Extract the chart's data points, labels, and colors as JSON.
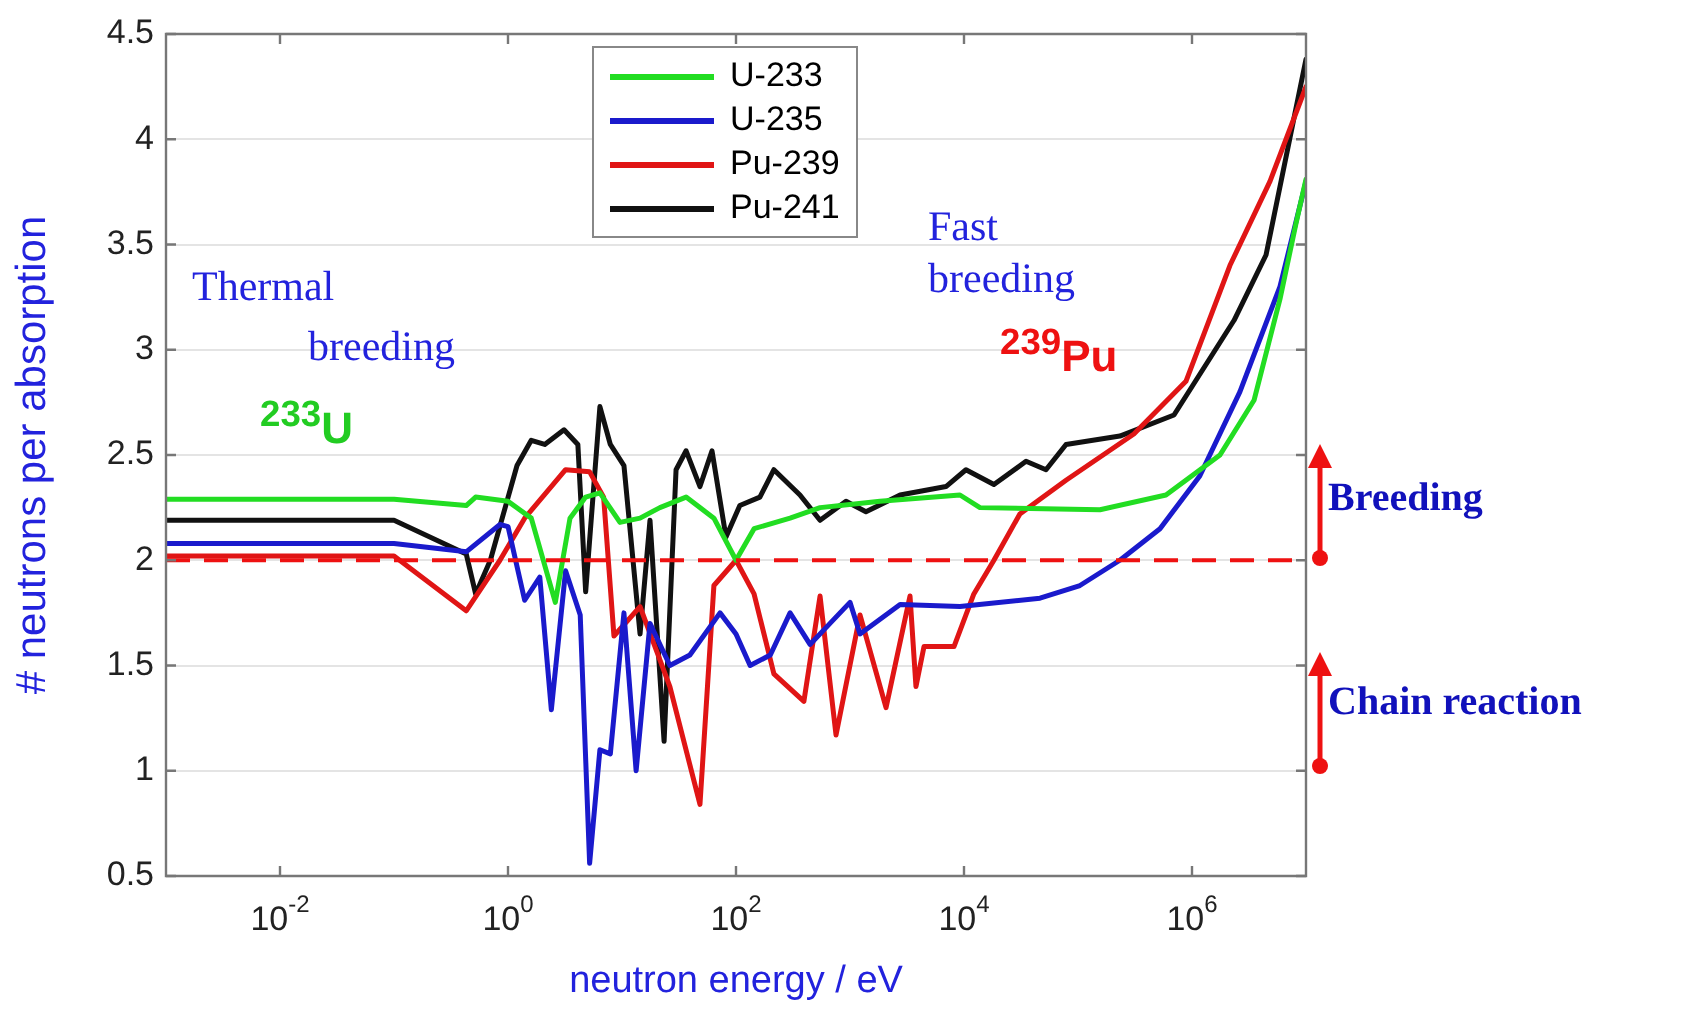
{
  "chart_data": {
    "type": "line",
    "xlabel": "neutron energy / eV",
    "ylabel": "# neutrons per absorption",
    "log": "x",
    "xlim": [
      0.001,
      10000000
    ],
    "ylim": [
      0.5,
      4.5
    ],
    "xticks": [
      {
        "value": 0.01,
        "label": "10$^{-2}$"
      },
      {
        "value": 1,
        "label": "10$^{0}$"
      },
      {
        "value": 100,
        "label": "10$^{2}$"
      },
      {
        "value": 10000,
        "label": "10$^{4}$"
      },
      {
        "value": 1000000,
        "label": "10$^{6}$"
      }
    ],
    "yticks": [
      0.5,
      1,
      1.5,
      2,
      2.5,
      3,
      3.5,
      4,
      4.5
    ],
    "grid": "y",
    "legend": "top",
    "marker": "none",
    "line_style": "solid",
    "series": [
      {
        "name": "U-233",
        "color": "#22dd22",
        "x": [
          0.001,
          0.1,
          0.43,
          0.52,
          1,
          1.6,
          2.6,
          3.5,
          4.8,
          6.4,
          9.6,
          14.4,
          21.5,
          36.5,
          64,
          100,
          144,
          298,
          546,
          1832,
          9220,
          13800,
          156000,
          591000,
          1760000,
          3500000,
          5910000,
          8170000,
          10000000
        ],
        "values": [
          2.29,
          2.29,
          2.26,
          2.3,
          2.28,
          2.2,
          1.8,
          2.2,
          2.3,
          2.32,
          2.18,
          2.2,
          2.25,
          2.3,
          2.2,
          2.0,
          2.15,
          2.2,
          2.25,
          2.28,
          2.31,
          2.25,
          2.24,
          2.31,
          2.5,
          2.76,
          3.24,
          3.6,
          3.81
        ]
      },
      {
        "name": "U-235",
        "color": "#1a1acc",
        "x": [
          0.001,
          0.1,
          0.43,
          0.85,
          1,
          1.4,
          1.9,
          2.4,
          3.2,
          4.3,
          5.2,
          6.4,
          7.9,
          10.4,
          13.3,
          17.6,
          26.3,
          39.4,
          72.4,
          100,
          133,
          200,
          298,
          446,
          668,
          1000,
          1224,
          2750,
          9220,
          46400,
          104000,
          233000,
          524000,
          1170000,
          2630000,
          5910000,
          10000000
        ],
        "values": [
          2.08,
          2.08,
          2.04,
          2.17,
          2.16,
          1.81,
          1.92,
          1.29,
          1.95,
          1.74,
          0.56,
          1.1,
          1.08,
          1.75,
          1.0,
          1.7,
          1.5,
          1.55,
          1.75,
          1.65,
          1.5,
          1.55,
          1.75,
          1.6,
          1.7,
          1.8,
          1.65,
          1.79,
          1.78,
          1.82,
          1.88,
          2.0,
          2.15,
          2.4,
          2.8,
          3.3,
          3.8
        ]
      },
      {
        "name": "Pu-239",
        "color": "#e01515",
        "x": [
          0.001,
          0.1,
          0.43,
          0.85,
          1.4,
          3.2,
          5.2,
          6.9,
          8.5,
          14.4,
          26.3,
          48.3,
          64,
          100,
          144,
          215,
          394,
          546,
          754,
          1224,
          2070,
          3360,
          3790,
          4460,
          8170,
          12200,
          18300,
          30900,
          78500,
          309000,
          885000,
          2150000,
          4830000,
          10000000
        ],
        "values": [
          2.02,
          2.02,
          1.76,
          2.0,
          2.2,
          2.43,
          2.42,
          2.3,
          1.64,
          1.78,
          1.4,
          0.84,
          1.88,
          2.0,
          1.84,
          1.46,
          1.33,
          1.83,
          1.17,
          1.74,
          1.3,
          1.83,
          1.4,
          1.59,
          1.59,
          1.84,
          2.0,
          2.22,
          2.38,
          2.6,
          2.85,
          3.4,
          3.8,
          4.25
        ]
      },
      {
        "name": "Pu-241",
        "color": "#111111",
        "x": [
          0.001,
          0.1,
          0.43,
          0.52,
          0.7,
          1.2,
          1.6,
          2.1,
          3.1,
          4.1,
          4.8,
          6.4,
          7.9,
          10.4,
          14.4,
          17.6,
          23.4,
          29.8,
          36.5,
          48.3,
          61.6,
          81.7,
          108,
          162,
          215,
          364,
          546,
          922,
          1380,
          2750,
          6950,
          10400,
          18300,
          35000,
          52400,
          78500,
          233000,
          695000,
          2340000,
          4460000,
          10000000
        ],
        "values": [
          2.19,
          2.19,
          2.03,
          1.84,
          2.0,
          2.45,
          2.57,
          2.55,
          2.62,
          2.55,
          1.85,
          2.73,
          2.55,
          2.45,
          1.65,
          2.19,
          1.14,
          2.43,
          2.52,
          2.35,
          2.52,
          2.11,
          2.26,
          2.3,
          2.43,
          2.31,
          2.19,
          2.28,
          2.23,
          2.31,
          2.35,
          2.43,
          2.36,
          2.47,
          2.43,
          2.55,
          2.59,
          2.69,
          3.14,
          3.45,
          4.38
        ]
      }
    ],
    "ref_lines": [
      {
        "axis": "y",
        "value": 2,
        "color": "#ee1111",
        "line_style": "dashed"
      }
    ],
    "annotations": [
      "Thermal breeding",
      "Fast breeding",
      "$^{233}$U",
      "$^{239}$Pu",
      "Breeding",
      "Chain reaction"
    ]
  }
}
